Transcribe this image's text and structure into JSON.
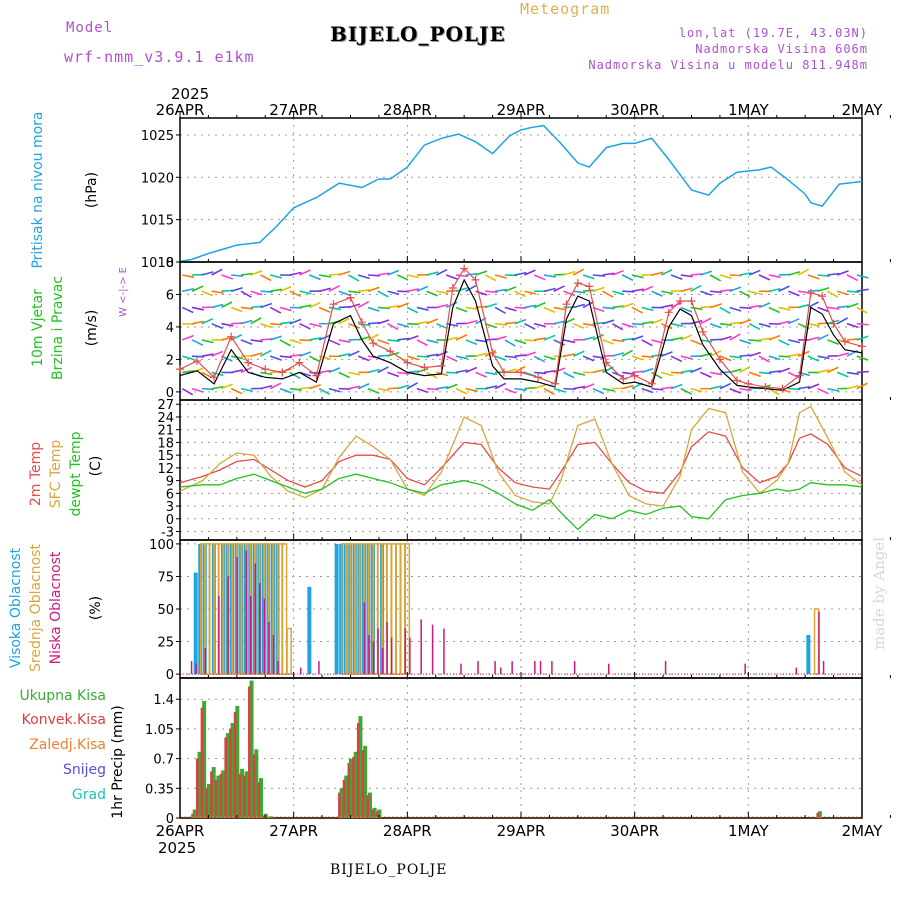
{
  "header": {
    "model_label": "Model",
    "model_name": "wrf-nmm_v3.9.1  e1km",
    "station": "BIJELO_POLJE",
    "product": "Meteogram",
    "coords": "lon,lat (19.7E, 43.03N)",
    "elevation": "Nadmorska Visina 606m",
    "model_elevation": "Nadmorska Visina u modelu 811.948m",
    "year_top": "2025",
    "year_bottom": "2025",
    "footer_station": "BIJELO_POLJE",
    "watermark": "made by Angel"
  },
  "colors": {
    "pressure": "#1ea4e0",
    "temp2m": "#e84a4a",
    "sfc_temp": "#d9a63a",
    "dewpoint": "#22c222",
    "cloud_high": "#1ea4e0",
    "cloud_mid": "#d9a63a",
    "cloud_low": "#d0187c",
    "precip_total": "#3aaa35",
    "precip_conv": "#d94040",
    "precip_ice": "#f08030",
    "precip_snow": "#5050e0",
    "precip_hail": "#20c0c0",
    "purple_text": "#b050d0",
    "orange_text": "#e0b050",
    "wind_line": "#000000",
    "wind_gust": "#e05050"
  },
  "chart_data": [
    {
      "type": "line",
      "panel": "pressure",
      "ylabel_left": "Pritisak na nivou mora",
      "unit": "(hPa)",
      "ylim": [
        1010,
        1027
      ],
      "yticks": [
        "1010",
        "1015",
        "1020",
        "1025"
      ],
      "x_days": [
        0,
        0.1,
        0.25,
        0.5,
        0.7,
        0.85,
        1.0,
        1.2,
        1.4,
        1.6,
        1.75,
        1.85,
        2.0,
        2.15,
        2.3,
        2.45,
        2.6,
        2.75,
        2.9,
        3.0,
        3.1,
        3.2,
        3.35,
        3.5,
        3.6,
        3.75,
        3.9,
        4.0,
        4.15,
        4.3,
        4.5,
        4.65,
        4.75,
        4.9,
        5.1,
        5.2,
        5.35,
        5.5,
        5.55,
        5.65,
        5.8,
        6.0
      ],
      "series": [
        {
          "values": [
            1010.1,
            1010.3,
            1011.0,
            1012.0,
            1012.3,
            1014.2,
            1016.4,
            1017.6,
            1019.3,
            1018.8,
            1019.8,
            1019.8,
            1021.2,
            1023.8,
            1024.6,
            1025.1,
            1024.2,
            1022.8,
            1024.9,
            1025.6,
            1025.9,
            1026.1,
            1024.0,
            1021.7,
            1021.2,
            1023.5,
            1024.0,
            1024.0,
            1024.6,
            1022.1,
            1018.5,
            1017.9,
            1019.3,
            1020.6,
            1020.9,
            1021.2,
            1019.7,
            1018.0,
            1017.0,
            1016.6,
            1019.2,
            1019.5
          ]
        }
      ]
    },
    {
      "type": "line",
      "panel": "wind",
      "ylabel_left": [
        "10m Vjetar",
        "Brzina i Pravac"
      ],
      "unit": "(m/s)",
      "compass": "W <-|-> E",
      "ylim": [
        -0.5,
        8
      ],
      "yticks": [
        "0",
        "2",
        "4",
        "6",
        "8"
      ],
      "x_days": [
        0,
        0.15,
        0.3,
        0.45,
        0.6,
        0.75,
        0.9,
        1.05,
        1.2,
        1.35,
        1.5,
        1.6,
        1.7,
        1.85,
        2.0,
        2.15,
        2.3,
        2.4,
        2.5,
        2.6,
        2.75,
        2.85,
        3.0,
        3.15,
        3.3,
        3.4,
        3.5,
        3.6,
        3.75,
        3.9,
        4.0,
        4.15,
        4.3,
        4.4,
        4.5,
        4.6,
        4.75,
        4.9,
        5.0,
        5.15,
        5.3,
        5.45,
        5.55,
        5.65,
        5.75,
        5.85,
        6.0
      ],
      "series": [
        {
          "name": "speed",
          "values": [
            1.0,
            1.3,
            0.5,
            2.6,
            1.2,
            0.9,
            0.8,
            1.2,
            0.6,
            4.2,
            4.7,
            3.2,
            2.2,
            1.8,
            1.2,
            1.0,
            1.1,
            5.2,
            6.9,
            5.6,
            1.6,
            0.8,
            0.8,
            0.6,
            0.3,
            4.5,
            5.9,
            5.6,
            1.2,
            0.5,
            0.6,
            0.3,
            4.0,
            5.1,
            4.7,
            2.9,
            1.4,
            0.4,
            0.3,
            0.2,
            0.1,
            0.6,
            5.2,
            4.8,
            3.5,
            2.6,
            2.4
          ]
        },
        {
          "name": "gust",
          "values": [
            1.4,
            1.9,
            0.9,
            3.4,
            1.8,
            1.4,
            1.2,
            1.8,
            1.0,
            5.4,
            5.8,
            4.3,
            3.0,
            2.5,
            1.8,
            1.5,
            1.6,
            6.4,
            7.6,
            6.9,
            2.4,
            1.2,
            1.2,
            0.9,
            0.5,
            5.4,
            6.7,
            6.5,
            1.8,
            0.8,
            1.0,
            0.5,
            4.9,
            5.6,
            5.6,
            3.7,
            2.0,
            0.7,
            0.5,
            0.3,
            0.2,
            1.0,
            6.1,
            5.9,
            4.2,
            3.1,
            2.8
          ]
        }
      ]
    },
    {
      "type": "line",
      "panel": "temperature",
      "ylabel_left": [
        "2m Temp",
        "SFC Temp",
        "dewpt Temp"
      ],
      "unit": "(C)",
      "ylim": [
        -5,
        28
      ],
      "yticks": [
        "-3",
        "0",
        "3",
        "6",
        "9",
        "12",
        "15",
        "18",
        "21",
        "24",
        "27"
      ],
      "x_days": [
        0,
        0.2,
        0.35,
        0.5,
        0.65,
        0.8,
        0.95,
        1.1,
        1.25,
        1.4,
        1.55,
        1.7,
        1.85,
        2.0,
        2.15,
        2.3,
        2.5,
        2.65,
        2.8,
        2.95,
        3.1,
        3.25,
        3.35,
        3.5,
        3.65,
        3.8,
        3.95,
        4.1,
        4.25,
        4.4,
        4.5,
        4.65,
        4.8,
        4.95,
        5.1,
        5.25,
        5.35,
        5.45,
        5.55,
        5.7,
        5.85,
        6.0
      ],
      "series": [
        {
          "name": "2m Temp",
          "values": [
            8.5,
            10.0,
            11.5,
            13.5,
            14.0,
            11.5,
            9.0,
            7.5,
            9.0,
            13.5,
            15.0,
            15.0,
            14.0,
            9.5,
            8.0,
            12.0,
            18.0,
            17.5,
            12.0,
            8.5,
            7.5,
            7.0,
            11.0,
            17.5,
            18.0,
            13.0,
            8.5,
            6.5,
            6.0,
            11.0,
            17.0,
            20.5,
            19.5,
            12.0,
            8.5,
            10.0,
            13.0,
            19.0,
            20.0,
            17.5,
            12.0,
            10.0
          ]
        },
        {
          "name": "SFC Temp",
          "values": [
            6.5,
            9.0,
            13.0,
            15.5,
            15.0,
            10.0,
            6.5,
            5.0,
            7.0,
            14.5,
            19.5,
            17.0,
            14.0,
            7.0,
            5.5,
            11.0,
            24.0,
            22.0,
            11.0,
            5.5,
            4.0,
            3.5,
            9.0,
            22.0,
            23.5,
            13.0,
            5.5,
            3.5,
            3.0,
            10.0,
            21.0,
            26.0,
            25.0,
            11.0,
            6.0,
            9.0,
            13.0,
            25.0,
            26.5,
            19.0,
            11.0,
            8.0
          ]
        },
        {
          "name": "dewpt Temp",
          "values": [
            7.5,
            8.0,
            8.0,
            9.5,
            10.5,
            9.0,
            7.5,
            6.0,
            7.0,
            9.5,
            10.5,
            9.5,
            8.5,
            7.0,
            6.0,
            8.0,
            9.0,
            8.0,
            6.0,
            3.5,
            2.0,
            4.5,
            1.5,
            -2.5,
            1.0,
            0.0,
            2.0,
            1.0,
            2.5,
            3.0,
            0.5,
            0.0,
            4.5,
            5.5,
            6.0,
            7.0,
            6.5,
            7.0,
            8.5,
            8.0,
            8.0,
            7.5
          ]
        }
      ]
    },
    {
      "type": "bar",
      "panel": "clouds",
      "ylabel_left": [
        "Visoka Oblacnost",
        "Srednja Oblacnost",
        "Niska Oblacnost"
      ],
      "unit": "(%)",
      "ylim": [
        0,
        100
      ],
      "yticks": [
        "0",
        "25",
        "50",
        "75",
        "100"
      ],
      "x_days": [
        0.08,
        0.12,
        0.16,
        0.2,
        0.24,
        0.28,
        0.32,
        0.36,
        0.4,
        0.44,
        0.48,
        0.52,
        0.56,
        0.6,
        0.64,
        0.68,
        0.72,
        0.76,
        0.8,
        0.84,
        0.88,
        0.92,
        0.96,
        1.0,
        1.04,
        1.08,
        1.12,
        1.16,
        1.2,
        1.24,
        1.28,
        1.32,
        1.36,
        1.4,
        1.44,
        1.48,
        1.52,
        1.56,
        1.6,
        1.64,
        1.68,
        1.72,
        1.76,
        1.8,
        1.84,
        1.88,
        1.92,
        1.96,
        2.0,
        2.1,
        2.2,
        2.3,
        2.45,
        2.6,
        2.75,
        2.8,
        2.9,
        3.1,
        3.15,
        3.25,
        3.45,
        3.75,
        4.25,
        4.95,
        5.4,
        5.55,
        5.6,
        5.64
      ],
      "series": [
        {
          "name": "Visoka Oblacnost",
          "values": [
            0,
            0,
            78,
            100,
            100,
            0,
            100,
            0,
            100,
            100,
            100,
            100,
            100,
            100,
            100,
            100,
            100,
            100,
            100,
            100,
            100,
            0,
            0,
            0,
            0,
            0,
            0,
            67,
            0,
            0,
            0,
            0,
            0,
            100,
            100,
            100,
            100,
            100,
            100,
            100,
            100,
            100,
            0,
            100,
            0,
            0,
            0,
            0,
            0,
            0,
            0,
            0,
            0,
            0,
            0,
            0,
            0,
            0,
            0,
            0,
            0,
            0,
            0,
            0,
            0,
            30,
            0,
            0
          ]
        },
        {
          "name": "Srednja Oblacnost",
          "values": [
            0,
            0,
            0,
            100,
            100,
            100,
            100,
            100,
            100,
            100,
            100,
            100,
            100,
            100,
            100,
            100,
            100,
            100,
            100,
            100,
            100,
            100,
            35,
            0,
            0,
            0,
            0,
            0,
            0,
            0,
            0,
            0,
            0,
            0,
            100,
            100,
            100,
            100,
            100,
            100,
            100,
            100,
            100,
            100,
            100,
            100,
            100,
            100,
            100,
            0,
            0,
            0,
            0,
            0,
            0,
            0,
            0,
            0,
            0,
            0,
            0,
            0,
            0,
            0,
            0,
            0,
            50,
            0
          ]
        },
        {
          "name": "Niska Oblacnost",
          "values": [
            10,
            8,
            0,
            20,
            0,
            0,
            60,
            0,
            75,
            0,
            90,
            0,
            95,
            60,
            85,
            70,
            58,
            40,
            30,
            10,
            0,
            0,
            0,
            0,
            5,
            0,
            0,
            0,
            10,
            0,
            0,
            0,
            0,
            0,
            0,
            0,
            0,
            0,
            55,
            30,
            25,
            35,
            20,
            40,
            28,
            0,
            0,
            35,
            28,
            42,
            38,
            35,
            8,
            10,
            10,
            5,
            10,
            10,
            10,
            10,
            10,
            8,
            10,
            8,
            5,
            0,
            48,
            10
          ]
        }
      ]
    },
    {
      "type": "bar",
      "panel": "precipitation",
      "ylabel_left": [
        "Ukupna Kisa",
        "Konvek.Kisa",
        "Zaledj.Kisa",
        "Snijeg",
        "Grad"
      ],
      "ylabel_right": "1hr Precip (mm)",
      "ylim": [
        0,
        1.65
      ],
      "yticks": [
        "0",
        "0.35",
        "0.7",
        "1.05",
        "1.4"
      ],
      "x_days": [
        0.125,
        0.167,
        0.208,
        0.25,
        0.292,
        0.333,
        0.375,
        0.417,
        0.458,
        0.5,
        0.542,
        0.583,
        0.625,
        0.667,
        0.708,
        0.75,
        0.792,
        1.417,
        1.458,
        1.5,
        1.542,
        1.583,
        1.625,
        1.667,
        1.708,
        1.75,
        5.625
      ],
      "series": [
        {
          "name": "Ukupna Kisa",
          "values": [
            0.1,
            0.78,
            1.38,
            0.4,
            0.6,
            0.5,
            0.56,
            1.0,
            1.12,
            1.32,
            0.58,
            0.55,
            1.62,
            0.81,
            0.47,
            0.05,
            0.02,
            0.35,
            0.5,
            0.7,
            0.78,
            1.2,
            0.85,
            0.3,
            0.12,
            0.1,
            0.08
          ]
        },
        {
          "name": "Konvek.Kisa",
          "values": [
            0.05,
            0.7,
            1.3,
            0.35,
            0.55,
            0.45,
            0.52,
            0.95,
            1.05,
            1.25,
            0.52,
            0.5,
            1.55,
            0.75,
            0.42,
            0.03,
            0.01,
            0.3,
            0.45,
            0.65,
            0.72,
            1.12,
            0.8,
            0.27,
            0.1,
            0.08,
            0.06
          ]
        }
      ]
    }
  ],
  "x_axis": {
    "labels": [
      "26APR",
      "27APR",
      "28APR",
      "29APR",
      "30APR",
      "1MAY",
      "2MAY"
    ],
    "range_days": [
      0,
      6
    ]
  }
}
